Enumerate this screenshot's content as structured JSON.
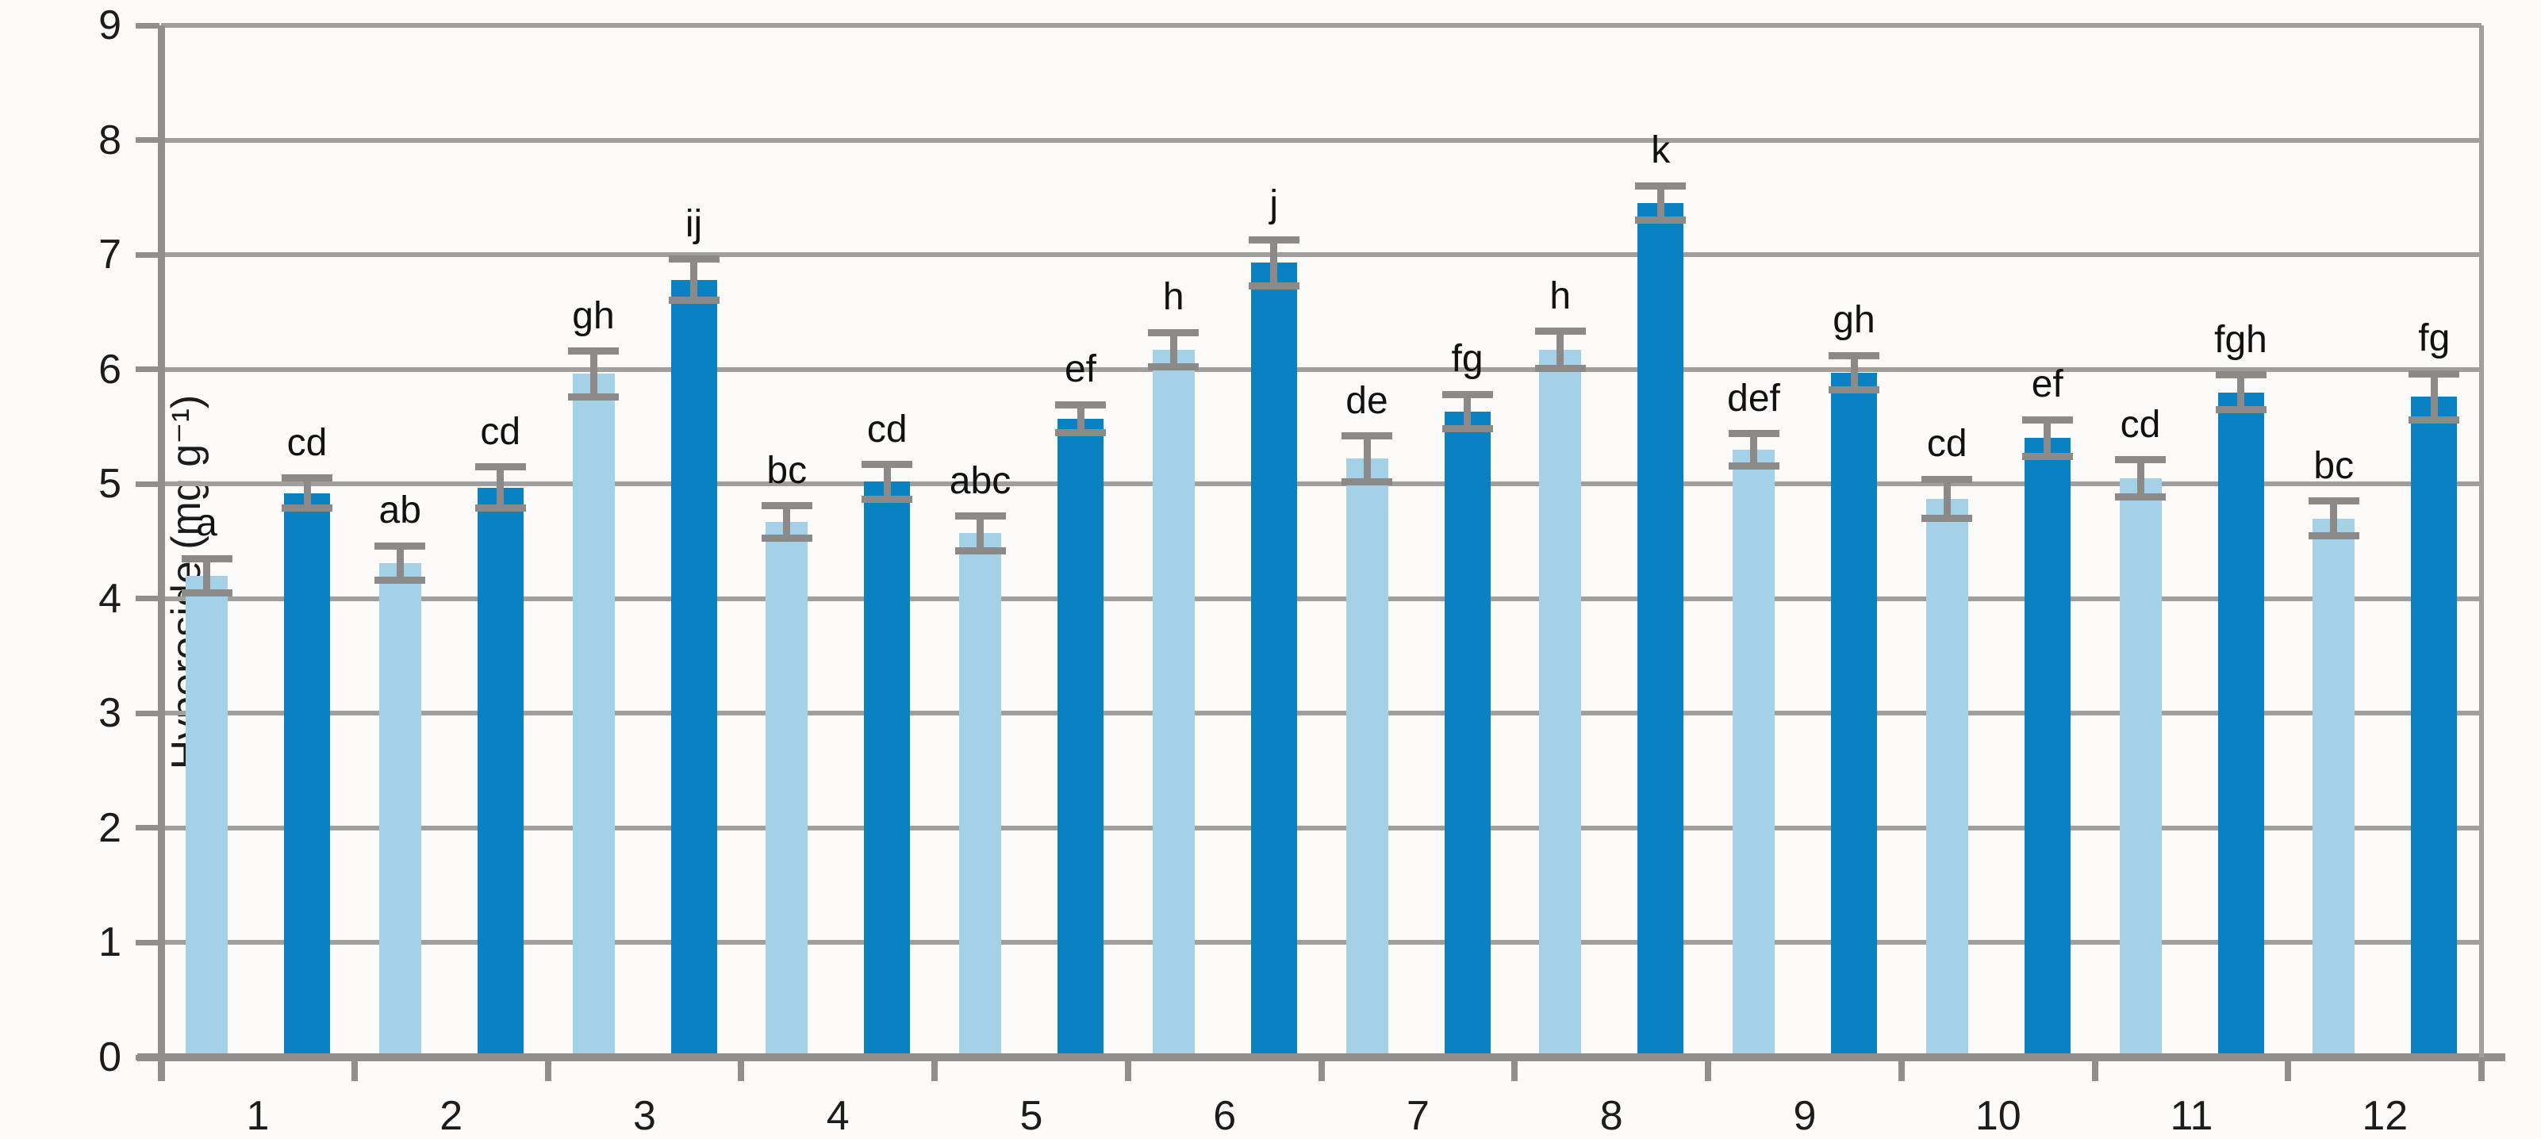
{
  "figure": {
    "background": "#fcfbf9"
  },
  "chart_data": {
    "type": "bar",
    "title": "",
    "xlabel": "",
    "ylabel": "Hyperoside (mg g⁻¹)",
    "ylim": [
      0,
      9
    ],
    "yticks": [
      0,
      1,
      2,
      3,
      4,
      5,
      6,
      7,
      8,
      9
    ],
    "grid": true,
    "legend_position": "none",
    "categories": [
      "1",
      "2",
      "3",
      "4",
      "5",
      "6",
      "7",
      "8",
      "9",
      "10",
      "11",
      "12"
    ],
    "series": [
      {
        "name": "light-blue-bars",
        "color": "#a5d1e8",
        "values": [
          4.2,
          4.31,
          5.96,
          4.67,
          4.57,
          6.17,
          5.22,
          6.17,
          5.3,
          4.87,
          5.05,
          4.7
        ],
        "errors": [
          0.15,
          0.15,
          0.2,
          0.14,
          0.15,
          0.15,
          0.2,
          0.16,
          0.14,
          0.17,
          0.16,
          0.15
        ],
        "sig_labels": [
          "a",
          "ab",
          "gh",
          "bc",
          "abc",
          "h",
          "de",
          "h",
          "def",
          "cd",
          "cd",
          "bc"
        ]
      },
      {
        "name": "dark-blue-bars",
        "color": "#0a81c0",
        "values": [
          4.92,
          4.97,
          6.78,
          5.02,
          5.57,
          6.93,
          5.63,
          7.45,
          5.97,
          5.4,
          5.8,
          5.76
        ],
        "errors": [
          0.13,
          0.18,
          0.18,
          0.15,
          0.12,
          0.2,
          0.15,
          0.15,
          0.15,
          0.16,
          0.15,
          0.2
        ],
        "sig_labels": [
          "cd",
          "cd",
          "ij",
          "cd",
          "ef",
          "j",
          "fg",
          "k",
          "gh",
          "ef",
          "fgh",
          "fg"
        ]
      }
    ],
    "colors": {
      "gridline": "#a19f9d",
      "axis": "#918f8d",
      "error_bar": "#8c8a88",
      "text": "#1c1c1c"
    }
  }
}
